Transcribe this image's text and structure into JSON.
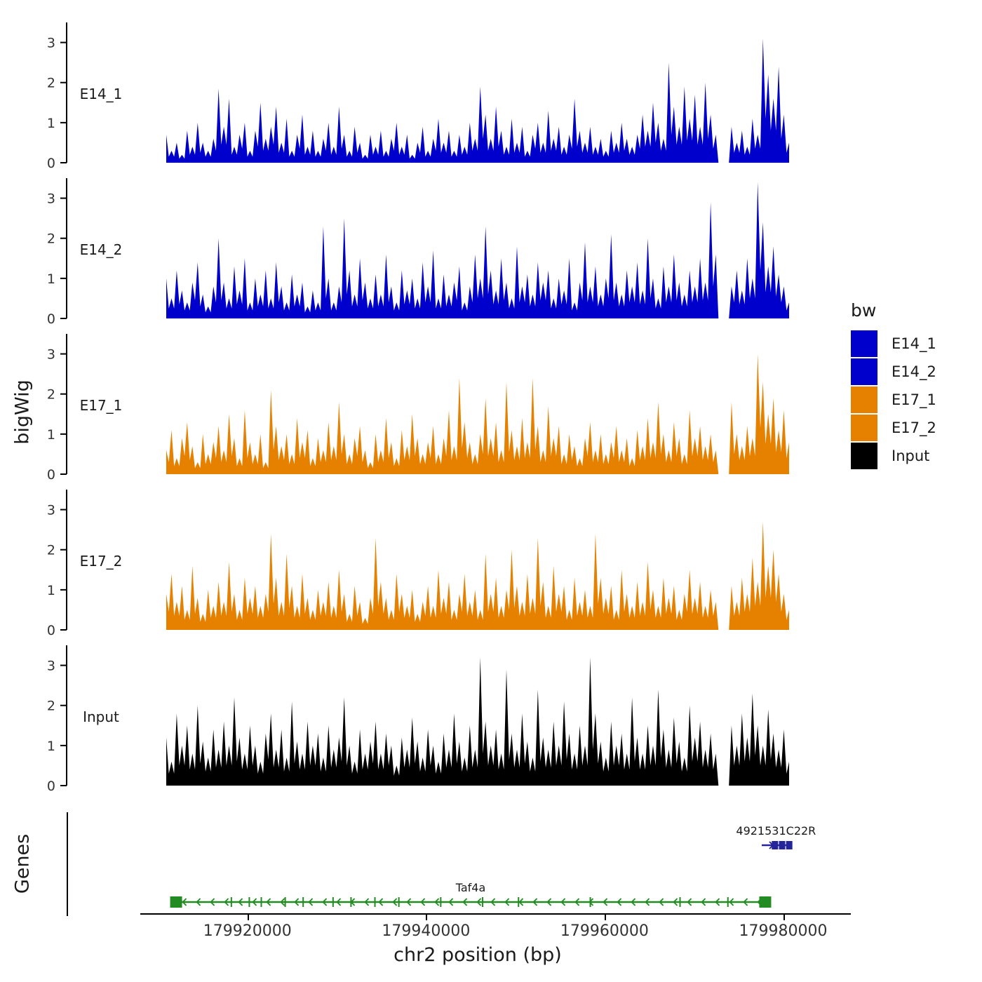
{
  "figure": {
    "ylabel_left": "bigWig",
    "genes_label": "Genes",
    "xlabel": "chr2 position (bp)"
  },
  "legend": {
    "title": "bw",
    "items": [
      {
        "label": "E14_1",
        "color": "#0000CC"
      },
      {
        "label": "E14_2",
        "color": "#0000CC"
      },
      {
        "label": "E17_1",
        "color": "#E68100"
      },
      {
        "label": "E17_2",
        "color": "#E68100"
      },
      {
        "label": "Input",
        "color": "#000000"
      }
    ]
  },
  "chart_data": {
    "type": "area",
    "title": "",
    "xlabel": "chr2 position (bp)",
    "ylabel": "bigWig",
    "x_axis": {
      "range": [
        179908000,
        179987500
      ],
      "ticks": [
        179920000,
        179940000,
        179960000,
        179980000
      ],
      "tick_labels": [
        "179920000",
        "179940000",
        "179960000",
        "179980000"
      ]
    },
    "y_axis": {
      "ticks": [
        0,
        1,
        2,
        3
      ],
      "ylim": [
        0,
        3.5
      ]
    },
    "tracks": [
      {
        "name": "E14_1",
        "color": "#0000CC",
        "values": [
          0.7,
          0.3,
          0.5,
          0.2,
          0.8,
          0.4,
          1.0,
          0.5,
          0.3,
          0.6,
          1.85,
          0.9,
          1.6,
          0.4,
          0.7,
          1.0,
          0.3,
          0.8,
          1.5,
          0.6,
          0.9,
          1.4,
          0.5,
          1.1,
          0.3,
          0.7,
          1.2,
          0.4,
          0.8,
          0.3,
          0.6,
          1.0,
          0.4,
          1.4,
          0.7,
          0.3,
          0.9,
          0.5,
          0.2,
          0.7,
          0.4,
          0.8,
          0.3,
          0.6,
          1.0,
          0.4,
          0.7,
          0.2,
          0.5,
          0.9,
          0.3,
          0.6,
          1.1,
          0.5,
          0.8,
          0.3,
          0.7,
          0.4,
          1.0,
          0.6,
          1.9,
          1.2,
          0.6,
          1.4,
          0.8,
          0.4,
          1.1,
          0.5,
          0.9,
          0.3,
          0.7,
          1.0,
          0.5,
          1.3,
          0.6,
          0.9,
          0.4,
          0.7,
          1.6,
          0.8,
          0.5,
          0.9,
          0.4,
          0.6,
          0.3,
          0.8,
          0.5,
          1.0,
          0.6,
          0.4,
          0.7,
          1.2,
          0.8,
          1.5,
          1.0,
          0.6,
          2.5,
          1.4,
          0.9,
          1.9,
          1.1,
          1.7,
          0.9,
          2.0,
          1.2,
          0.7,
          0,
          0,
          0.9,
          0.5,
          0.8,
          0.4,
          1.1,
          0.7,
          3.1,
          2.2,
          1.6,
          2.4,
          1.2,
          0.5
        ]
      },
      {
        "name": "E14_2",
        "color": "#0000CC",
        "values": [
          1.0,
          0.5,
          1.2,
          0.7,
          0.4,
          0.9,
          1.4,
          0.6,
          0.3,
          0.8,
          2.0,
          0.9,
          0.5,
          1.3,
          0.7,
          1.5,
          0.4,
          1.0,
          0.6,
          1.2,
          0.5,
          1.4,
          0.8,
          0.4,
          1.1,
          0.6,
          0.9,
          0.3,
          0.7,
          0.4,
          2.3,
          1.0,
          0.4,
          0.8,
          2.5,
          1.2,
          0.6,
          1.5,
          0.9,
          0.5,
          1.1,
          0.6,
          1.6,
          0.8,
          0.4,
          1.2,
          0.7,
          1.0,
          0.5,
          1.4,
          0.8,
          1.7,
          0.5,
          1.1,
          0.6,
          0.9,
          1.3,
          0.4,
          0.8,
          1.6,
          1.0,
          2.3,
          1.2,
          0.7,
          1.5,
          0.9,
          0.5,
          1.8,
          0.8,
          1.1,
          0.6,
          1.4,
          0.9,
          1.2,
          0.5,
          1.0,
          0.7,
          1.5,
          0.4,
          0.9,
          1.9,
          0.8,
          1.3,
          0.6,
          1.0,
          2.1,
          0.9,
          0.6,
          1.2,
          0.8,
          1.4,
          0.7,
          2.0,
          1.0,
          0.5,
          1.3,
          0.8,
          1.6,
          0.9,
          0.6,
          1.2,
          0.8,
          1.5,
          0.9,
          2.9,
          1.6,
          0,
          0,
          0.8,
          1.2,
          0.7,
          1.5,
          1.0,
          3.4,
          2.4,
          1.3,
          1.8,
          1.1,
          0.8,
          0.4
        ]
      },
      {
        "name": "E17_1",
        "color": "#E68100",
        "values": [
          0.6,
          1.1,
          0.4,
          0.9,
          1.3,
          0.7,
          0.3,
          1.0,
          0.5,
          0.8,
          1.2,
          0.6,
          1.5,
          0.9,
          0.4,
          1.6,
          0.8,
          0.5,
          1.0,
          0.3,
          2.1,
          1.2,
          0.7,
          1.0,
          0.5,
          1.4,
          0.8,
          1.1,
          0.4,
          0.9,
          0.6,
          1.3,
          0.7,
          1.8,
          1.0,
          0.5,
          0.9,
          1.2,
          0.6,
          0.3,
          1.0,
          0.6,
          1.4,
          0.8,
          0.4,
          1.1,
          0.7,
          1.5,
          0.9,
          0.5,
          0.8,
          1.2,
          0.5,
          0.9,
          1.6,
          0.7,
          2.4,
          1.3,
          0.8,
          0.5,
          1.0,
          1.9,
          0.9,
          1.3,
          0.6,
          2.3,
          1.1,
          0.7,
          1.4,
          0.8,
          2.4,
          1.2,
          0.6,
          1.7,
          0.9,
          1.2,
          0.5,
          1.0,
          0.7,
          0.4,
          0.9,
          1.3,
          0.6,
          1.0,
          0.5,
          0.8,
          1.2,
          0.6,
          0.9,
          0.4,
          1.1,
          0.7,
          1.4,
          0.8,
          1.8,
          1.0,
          0.6,
          1.3,
          0.9,
          0.5,
          1.6,
          0.9,
          1.2,
          0.7,
          1.0,
          0.6,
          0,
          0,
          1.8,
          1.0,
          0.7,
          1.2,
          0.9,
          3.0,
          2.3,
          1.5,
          1.9,
          1.1,
          1.6,
          0.8
        ]
      },
      {
        "name": "E17_2",
        "color": "#E68100",
        "values": [
          0.9,
          1.4,
          0.7,
          1.1,
          0.5,
          1.6,
          0.8,
          0.4,
          1.0,
          0.6,
          1.2,
          0.7,
          1.7,
          0.9,
          0.5,
          1.3,
          0.8,
          1.1,
          0.6,
          0.9,
          2.4,
          1.3,
          0.7,
          1.9,
          1.1,
          0.6,
          1.4,
          0.8,
          0.5,
          1.0,
          0.7,
          1.2,
          0.6,
          1.5,
          0.9,
          0.4,
          1.1,
          0.7,
          0.3,
          0.8,
          2.3,
          1.2,
          0.8,
          0.5,
          1.4,
          0.9,
          0.6,
          1.0,
          0.4,
          0.7,
          1.1,
          0.6,
          1.5,
          0.8,
          1.2,
          0.5,
          0.9,
          1.4,
          0.7,
          1.0,
          0.5,
          1.9,
          0.9,
          1.3,
          0.6,
          1.0,
          2.0,
          1.1,
          0.7,
          1.4,
          0.8,
          2.3,
          1.2,
          0.6,
          1.6,
          0.9,
          1.1,
          0.5,
          1.3,
          0.7,
          1.0,
          0.6,
          2.4,
          1.3,
          0.8,
          1.1,
          0.5,
          1.5,
          0.9,
          0.6,
          1.2,
          0.7,
          1.7,
          1.0,
          0.6,
          1.3,
          0.8,
          1.1,
          0.5,
          0.9,
          1.5,
          0.8,
          1.2,
          0.6,
          1.0,
          0.7,
          0,
          0,
          1.1,
          0.7,
          1.3,
          0.9,
          1.8,
          1.2,
          2.7,
          1.6,
          2.0,
          1.4,
          0.9,
          0.5
        ]
      },
      {
        "name": "Input",
        "color": "#000000",
        "values": [
          1.2,
          0.6,
          1.8,
          1.0,
          1.5,
          0.8,
          2.0,
          1.1,
          0.7,
          1.4,
          0.9,
          1.6,
          1.0,
          2.2,
          1.2,
          0.8,
          1.5,
          1.0,
          0.6,
          1.3,
          1.8,
          0.9,
          1.4,
          0.7,
          2.1,
          1.1,
          0.8,
          1.6,
          1.0,
          1.3,
          0.7,
          1.5,
          0.9,
          1.2,
          2.2,
          1.0,
          0.6,
          1.4,
          0.8,
          1.1,
          1.6,
          0.8,
          1.3,
          1.0,
          0.5,
          1.2,
          0.9,
          1.7,
          1.1,
          0.7,
          1.4,
          1.0,
          0.6,
          1.3,
          0.9,
          1.8,
          1.1,
          0.7,
          1.5,
          0.9,
          3.2,
          1.6,
          1.0,
          1.4,
          0.8,
          2.9,
          1.3,
          0.9,
          1.8,
          1.1,
          0.7,
          2.4,
          1.2,
          0.9,
          1.6,
          1.0,
          2.1,
          1.3,
          0.8,
          1.5,
          1.0,
          3.2,
          1.8,
          1.1,
          0.7,
          1.6,
          1.0,
          1.3,
          0.8,
          2.2,
          1.2,
          0.8,
          1.5,
          1.0,
          2.4,
          1.4,
          0.9,
          1.7,
          1.1,
          0.7,
          2.0,
          1.2,
          1.6,
          0.9,
          1.3,
          0.8,
          0,
          0,
          1.5,
          1.0,
          1.8,
          1.2,
          2.3,
          1.5,
          1.0,
          1.9,
          1.3,
          0.9,
          1.4,
          0.6
        ]
      }
    ],
    "genes": [
      {
        "name": "4921531C22R",
        "color": "#24249B",
        "strand": "+",
        "start": 179977600,
        "end": 179980800,
        "row": 0,
        "exon_boxes": [
          0.45,
          0.7,
          0.95
        ]
      },
      {
        "name": "Taf4a",
        "color": "#228B22",
        "strand": "-",
        "start": 179911500,
        "end": 179978500,
        "row": 1,
        "exon_ticks": [
          0.1,
          0.13,
          0.15,
          0.19,
          0.22,
          0.27,
          0.3,
          0.34,
          0.38,
          0.45,
          0.52,
          0.58,
          0.7,
          0.85,
          0.93
        ]
      }
    ]
  }
}
